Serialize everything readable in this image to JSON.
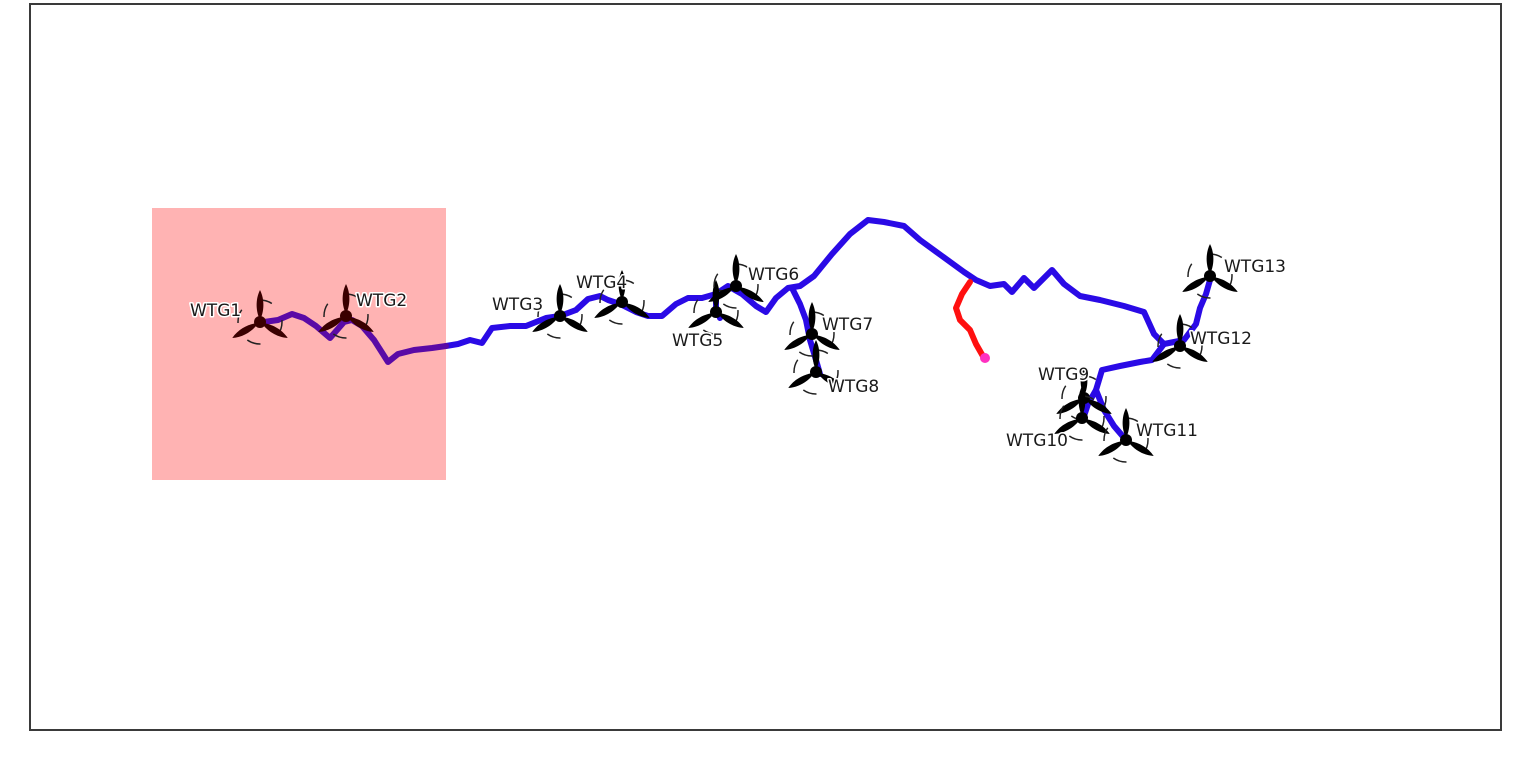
{
  "diagram": {
    "colors": {
      "background": "#ffffff",
      "frame": "#3a3a3a",
      "highlight_area": "#ffb3b3",
      "cable_main": "#2a0ae6",
      "cable_in_highlight": "#5a0aa6",
      "export_cable": "#ff1010",
      "substation": "#ff30c0",
      "turbine": "#000000",
      "turbine_highlighted": "#3a0000"
    },
    "turbines": [
      {
        "id": "WTG1",
        "label": "WTG1",
        "highlighted": true
      },
      {
        "id": "WTG2",
        "label": "WTG2",
        "highlighted": true
      },
      {
        "id": "WTG3",
        "label": "WTG3",
        "highlighted": false
      },
      {
        "id": "WTG4",
        "label": "WTG4",
        "highlighted": false
      },
      {
        "id": "WTG5",
        "label": "WTG5",
        "highlighted": false
      },
      {
        "id": "WTG6",
        "label": "WTG6",
        "highlighted": false
      },
      {
        "id": "WTG7",
        "label": "WTG7",
        "highlighted": false
      },
      {
        "id": "WTG8",
        "label": "WTG8",
        "highlighted": false
      },
      {
        "id": "WTG9",
        "label": "WTG9",
        "highlighted": false
      },
      {
        "id": "WTG10",
        "label": "WTG10",
        "highlighted": false
      },
      {
        "id": "WTG11",
        "label": "WTG11",
        "highlighted": false
      },
      {
        "id": "WTG12",
        "label": "WTG12",
        "highlighted": false
      },
      {
        "id": "WTG13",
        "label": "WTG13",
        "highlighted": false
      }
    ],
    "icons": {
      "turbine": "wind-turbine-icon",
      "substation": "substation-point-icon"
    }
  }
}
